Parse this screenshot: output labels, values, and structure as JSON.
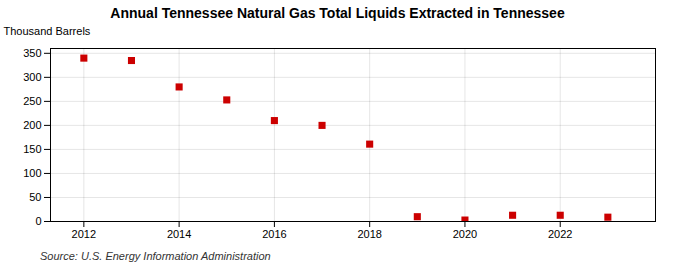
{
  "chart_data": {
    "type": "scatter",
    "title": "Annual Tennessee Natural Gas Total Liquids Extracted in Tennessee",
    "ylabel": "Thousand Barrels",
    "source": "Source: U.S. Energy Information Administration",
    "x": [
      2012,
      2013,
      2014,
      2015,
      2016,
      2017,
      2018,
      2019,
      2020,
      2021,
      2022,
      2023
    ],
    "values": [
      340,
      335,
      280,
      253,
      210,
      200,
      161,
      10,
      3,
      13,
      13,
      9
    ],
    "color": "#cc0000",
    "marker": "square",
    "xlim": [
      2011.3,
      2024.0
    ],
    "ylim": [
      0,
      360
    ],
    "xticks": [
      2012,
      2014,
      2016,
      2018,
      2020,
      2022
    ],
    "yticks": [
      0,
      50,
      100,
      150,
      200,
      250,
      300,
      350
    ],
    "grid": true
  }
}
